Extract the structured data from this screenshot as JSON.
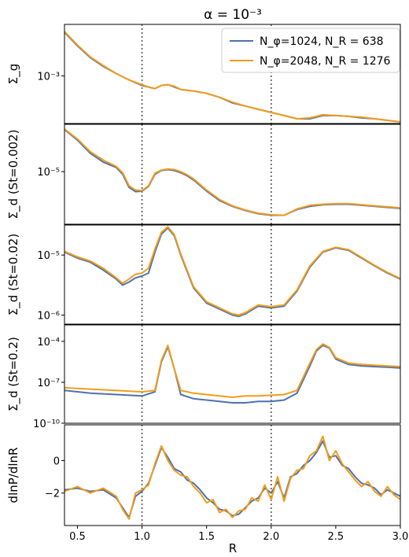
{
  "chart_data": {
    "type": "line",
    "title": "α = 10⁻³",
    "xlabel": "R",
    "xlim": [
      0.4,
      3.0
    ],
    "x_ticks": [
      "0.5",
      "1.0",
      "1.5",
      "2.0",
      "2.5",
      "3.0"
    ],
    "x_tick_values": [
      0.5,
      1.0,
      1.5,
      2.0,
      2.5,
      3.0
    ],
    "vlines": [
      1.0,
      2.0
    ],
    "colors": {
      "series1": "#4c72b0",
      "series2": "#f39c1a",
      "vline": "#555555"
    },
    "legend": {
      "placement": "top-right",
      "entries": [
        "N_φ=1024, N_R = 638",
        "N_φ=2048, N_R = 1276"
      ]
    },
    "panels": [
      {
        "ylabel": "Σ_g",
        "scale": "log",
        "ylim_log10": [
          -3.6,
          -2.35
        ],
        "y_ticks": [
          {
            "label": "10⁻³",
            "value": -3
          }
        ],
        "series": [
          {
            "name": "N_φ=1024, N_R = 638",
            "x": [
              0.4,
              0.5,
              0.6,
              0.7,
              0.8,
              0.9,
              1.0,
              1.05,
              1.1,
              1.15,
              1.2,
              1.25,
              1.3,
              1.4,
              1.5,
              1.6,
              1.7,
              1.8,
              1.9,
              2.0,
              2.1,
              2.2,
              2.3,
              2.4,
              2.5,
              2.6,
              2.7,
              2.8,
              2.9,
              3.0
            ],
            "y": [
              -2.45,
              -2.62,
              -2.77,
              -2.88,
              -2.97,
              -3.05,
              -3.12,
              -3.14,
              -3.16,
              -3.12,
              -3.11,
              -3.14,
              -3.17,
              -3.19,
              -3.22,
              -3.27,
              -3.34,
              -3.38,
              -3.42,
              -3.46,
              -3.5,
              -3.54,
              -3.54,
              -3.5,
              -3.5,
              -3.51,
              -3.53,
              -3.54,
              -3.56,
              -3.58
            ]
          },
          {
            "name": "N_φ=2048, N_R = 1276",
            "x": [
              0.4,
              0.5,
              0.6,
              0.7,
              0.8,
              0.9,
              1.0,
              1.05,
              1.1,
              1.15,
              1.2,
              1.25,
              1.3,
              1.4,
              1.5,
              1.6,
              1.7,
              1.8,
              1.9,
              2.0,
              2.1,
              2.2,
              2.3,
              2.4,
              2.5,
              2.6,
              2.7,
              2.8,
              2.9,
              3.0
            ],
            "y": [
              -2.44,
              -2.61,
              -2.76,
              -2.87,
              -2.97,
              -3.05,
              -3.11,
              -3.14,
              -3.16,
              -3.12,
              -3.11,
              -3.13,
              -3.17,
              -3.19,
              -3.22,
              -3.27,
              -3.33,
              -3.38,
              -3.42,
              -3.46,
              -3.5,
              -3.54,
              -3.53,
              -3.49,
              -3.5,
              -3.51,
              -3.52,
              -3.54,
              -3.56,
              -3.58
            ]
          }
        ]
      },
      {
        "ylabel": "Σ_d (St=0.002)",
        "scale": "log",
        "ylim_log10": [
          -6.0,
          -4.1
        ],
        "y_ticks": [
          {
            "label": "10⁻⁵",
            "value": -5
          }
        ],
        "series": [
          {
            "name": "N_φ=1024, N_R = 638",
            "x": [
              0.4,
              0.5,
              0.6,
              0.7,
              0.8,
              0.85,
              0.9,
              0.95,
              1.0,
              1.05,
              1.1,
              1.15,
              1.2,
              1.25,
              1.3,
              1.35,
              1.4,
              1.5,
              1.6,
              1.7,
              1.8,
              1.9,
              2.0,
              2.1,
              2.2,
              2.3,
              2.4,
              2.5,
              2.6,
              2.7,
              2.8,
              2.9,
              3.0
            ],
            "y": [
              -4.2,
              -4.4,
              -4.65,
              -4.82,
              -4.92,
              -5.05,
              -5.3,
              -5.38,
              -5.37,
              -5.28,
              -5.05,
              -4.98,
              -4.96,
              -4.98,
              -5.02,
              -5.08,
              -5.16,
              -5.37,
              -5.55,
              -5.66,
              -5.74,
              -5.8,
              -5.83,
              -5.83,
              -5.72,
              -5.66,
              -5.63,
              -5.62,
              -5.62,
              -5.64,
              -5.66,
              -5.68,
              -5.7
            ]
          },
          {
            "name": "N_φ=2048, N_R = 1276",
            "x": [
              0.4,
              0.5,
              0.6,
              0.7,
              0.8,
              0.85,
              0.9,
              0.95,
              1.0,
              1.05,
              1.1,
              1.15,
              1.2,
              1.25,
              1.3,
              1.35,
              1.4,
              1.5,
              1.6,
              1.7,
              1.8,
              1.9,
              2.0,
              2.1,
              2.2,
              2.3,
              2.4,
              2.5,
              2.6,
              2.7,
              2.8,
              2.9,
              3.0
            ],
            "y": [
              -4.19,
              -4.38,
              -4.62,
              -4.78,
              -4.9,
              -5.02,
              -5.27,
              -5.35,
              -5.36,
              -5.27,
              -5.03,
              -4.97,
              -4.95,
              -4.96,
              -5.0,
              -5.06,
              -5.14,
              -5.35,
              -5.53,
              -5.65,
              -5.73,
              -5.79,
              -5.82,
              -5.83,
              -5.71,
              -5.64,
              -5.62,
              -5.61,
              -5.61,
              -5.63,
              -5.65,
              -5.67,
              -5.69
            ]
          }
        ]
      },
      {
        "ylabel": "Σ_d (St=0.02)",
        "scale": "log",
        "ylim_log10": [
          -6.15,
          -4.5
        ],
        "y_ticks": [
          {
            "label": "10⁻⁶",
            "value": -6
          },
          {
            "label": "10⁻⁵",
            "value": -5
          }
        ],
        "series": [
          {
            "name": "N_φ=1024, N_R = 638",
            "x": [
              0.4,
              0.5,
              0.6,
              0.7,
              0.8,
              0.85,
              0.9,
              0.95,
              1.0,
              1.05,
              1.1,
              1.15,
              1.2,
              1.25,
              1.3,
              1.4,
              1.5,
              1.6,
              1.7,
              1.75,
              1.8,
              1.9,
              2.0,
              2.1,
              2.2,
              2.3,
              2.4,
              2.5,
              2.6,
              2.7,
              2.8,
              2.9,
              3.0
            ],
            "y": [
              -4.95,
              -5.05,
              -5.12,
              -5.25,
              -5.4,
              -5.5,
              -5.45,
              -5.38,
              -5.35,
              -5.3,
              -4.95,
              -4.65,
              -4.55,
              -4.68,
              -5.0,
              -5.55,
              -5.8,
              -5.9,
              -6.0,
              -6.02,
              -5.98,
              -5.85,
              -5.88,
              -5.85,
              -5.6,
              -5.2,
              -4.95,
              -4.88,
              -4.92,
              -5.05,
              -5.18,
              -5.3,
              -5.4
            ]
          },
          {
            "name": "N_φ=2048, N_R = 1276",
            "x": [
              0.4,
              0.5,
              0.6,
              0.7,
              0.8,
              0.85,
              0.9,
              0.95,
              1.0,
              1.05,
              1.1,
              1.15,
              1.2,
              1.25,
              1.3,
              1.4,
              1.5,
              1.6,
              1.7,
              1.75,
              1.8,
              1.9,
              2.0,
              2.1,
              2.2,
              2.3,
              2.4,
              2.5,
              2.6,
              2.7,
              2.8,
              2.9,
              3.0
            ],
            "y": [
              -4.94,
              -5.03,
              -5.1,
              -5.22,
              -5.38,
              -5.47,
              -5.4,
              -5.32,
              -5.3,
              -5.22,
              -4.9,
              -4.62,
              -4.53,
              -4.66,
              -4.98,
              -5.53,
              -5.78,
              -5.88,
              -5.98,
              -6.0,
              -5.96,
              -5.83,
              -5.86,
              -5.83,
              -5.58,
              -5.18,
              -4.94,
              -4.87,
              -4.91,
              -5.04,
              -5.17,
              -5.29,
              -5.39
            ]
          }
        ]
      },
      {
        "ylabel": "Σ_d (St=0.2)",
        "scale": "log",
        "ylim_log10": [
          -10.0,
          -2.8
        ],
        "y_ticks": [
          {
            "label": "10⁻¹⁰",
            "value": -10
          },
          {
            "label": "10⁻⁷",
            "value": -7
          },
          {
            "label": "10⁻⁴",
            "value": -4
          }
        ],
        "series": [
          {
            "name": "N_φ=1024, N_R = 638",
            "x": [
              0.4,
              0.6,
              0.8,
              1.0,
              1.1,
              1.15,
              1.2,
              1.25,
              1.3,
              1.4,
              1.5,
              1.6,
              1.7,
              1.8,
              1.9,
              2.0,
              2.1,
              2.2,
              2.3,
              2.35,
              2.4,
              2.45,
              2.5,
              2.6,
              2.7,
              2.8,
              2.9,
              3.0
            ],
            "y": [
              -7.6,
              -7.8,
              -7.9,
              -8.0,
              -7.7,
              -5.5,
              -4.4,
              -6.0,
              -7.9,
              -8.2,
              -8.3,
              -8.4,
              -8.5,
              -8.5,
              -8.4,
              -8.4,
              -8.3,
              -7.8,
              -5.8,
              -4.7,
              -4.3,
              -4.5,
              -5.3,
              -5.7,
              -5.8,
              -5.85,
              -5.9,
              -5.95
            ]
          },
          {
            "name": "N_φ=2048, N_R = 1276",
            "x": [
              0.4,
              0.6,
              0.8,
              1.0,
              1.1,
              1.15,
              1.2,
              1.25,
              1.3,
              1.4,
              1.5,
              1.6,
              1.7,
              1.8,
              1.9,
              2.0,
              2.1,
              2.2,
              2.3,
              2.35,
              2.4,
              2.45,
              2.5,
              2.6,
              2.7,
              2.8,
              2.9,
              3.0
            ],
            "y": [
              -7.4,
              -7.5,
              -7.6,
              -7.7,
              -7.6,
              -5.4,
              -4.3,
              -6.0,
              -7.6,
              -7.8,
              -7.9,
              -8.0,
              -8.1,
              -8.0,
              -8.0,
              -7.95,
              -7.9,
              -7.6,
              -5.6,
              -4.6,
              -4.2,
              -4.45,
              -5.2,
              -5.6,
              -5.7,
              -5.75,
              -5.8,
              -5.85
            ]
          }
        ]
      },
      {
        "ylabel": "dlnP/dlnR",
        "scale": "linear",
        "ylim": [
          -4.0,
          2.2
        ],
        "y_ticks": [
          {
            "label": "−2",
            "value": -2
          },
          {
            "label": "0",
            "value": 0
          }
        ],
        "series": [
          {
            "name": "N_φ=1024, N_R = 638",
            "x": [
              0.4,
              0.5,
              0.6,
              0.7,
              0.8,
              0.85,
              0.9,
              0.95,
              1.0,
              1.05,
              1.1,
              1.15,
              1.2,
              1.25,
              1.3,
              1.35,
              1.4,
              1.45,
              1.5,
              1.55,
              1.6,
              1.65,
              1.7,
              1.75,
              1.8,
              1.85,
              1.9,
              1.95,
              2.0,
              2.05,
              2.1,
              2.15,
              2.2,
              2.25,
              2.3,
              2.35,
              2.4,
              2.45,
              2.5,
              2.55,
              2.6,
              2.65,
              2.7,
              2.75,
              2.8,
              2.85,
              2.9,
              2.95,
              3.0
            ],
            "y": [
              -1.8,
              -1.7,
              -1.9,
              -1.8,
              -2.3,
              -2.9,
              -3.5,
              -2.2,
              -1.9,
              -1.4,
              -0.3,
              0.8,
              0.2,
              -0.5,
              -0.7,
              -1.2,
              -1.4,
              -1.8,
              -2.3,
              -2.6,
              -3.0,
              -3.1,
              -3.4,
              -3.3,
              -2.9,
              -2.5,
              -2.3,
              -1.7,
              -2.0,
              -1.3,
              -2.3,
              -1.0,
              -0.8,
              -0.3,
              0.0,
              0.5,
              1.2,
              0.2,
              0.3,
              -0.3,
              -0.5,
              -1.0,
              -1.4,
              -1.5,
              -1.7,
              -2.1,
              -1.8,
              -2.0,
              -2.2
            ]
          },
          {
            "name": "N_φ=2048, N_R = 1276",
            "x": [
              0.4,
              0.5,
              0.6,
              0.7,
              0.8,
              0.85,
              0.9,
              0.95,
              1.0,
              1.05,
              1.1,
              1.15,
              1.2,
              1.25,
              1.3,
              1.35,
              1.4,
              1.45,
              1.5,
              1.55,
              1.6,
              1.65,
              1.7,
              1.75,
              1.8,
              1.85,
              1.9,
              1.95,
              2.0,
              2.05,
              2.1,
              2.15,
              2.2,
              2.25,
              2.3,
              2.35,
              2.4,
              2.45,
              2.5,
              2.55,
              2.6,
              2.65,
              2.7,
              2.75,
              2.8,
              2.85,
              2.9,
              2.95,
              3.0
            ],
            "y": [
              -1.9,
              -1.6,
              -2.0,
              -1.7,
              -2.2,
              -3.0,
              -3.6,
              -2.0,
              -1.8,
              -1.5,
              -0.2,
              0.9,
              0.0,
              -0.6,
              -0.9,
              -1.0,
              -1.6,
              -2.0,
              -2.6,
              -2.4,
              -3.2,
              -3.0,
              -3.5,
              -3.1,
              -3.0,
              -2.3,
              -2.5,
              -1.5,
              -2.4,
              -1.0,
              -2.5,
              -1.1,
              -0.6,
              -0.5,
              0.3,
              0.6,
              1.5,
              0.0,
              0.6,
              -0.2,
              -0.7,
              -1.2,
              -1.6,
              -1.3,
              -1.9,
              -2.2,
              -1.6,
              -2.1,
              -2.4
            ]
          }
        ]
      }
    ]
  }
}
